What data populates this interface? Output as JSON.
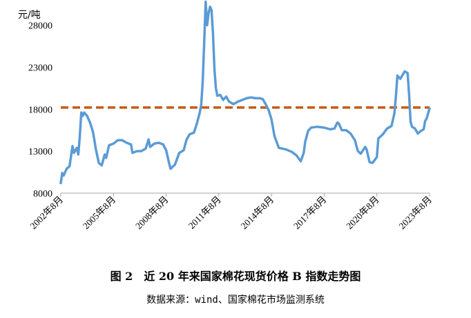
{
  "figure": {
    "title": "图 2　近 20 年来国家棉花现货价格 B 指数走势图",
    "source": "数据来源：wind、国家棉花市场监测系统"
  },
  "chart_data": {
    "type": "line",
    "y_unit_label": "元/吨",
    "ylim": [
      8000,
      31000
    ],
    "yticks": [
      8000,
      13000,
      18000,
      23000,
      28000
    ],
    "ytick_labels": [
      "8000",
      "13000",
      "18000",
      "23000",
      "28000"
    ],
    "xlim": [
      "2002-08",
      "2023-08"
    ],
    "xticks": [
      "2002-08",
      "2005-08",
      "2008-08",
      "2011-08",
      "2014-08",
      "2017-08",
      "2020-08",
      "2023-08"
    ],
    "xtick_labels": [
      "2002年8月",
      "2005年8月",
      "2008年8月",
      "2011年8月",
      "2014年8月",
      "2017年8月",
      "2020年8月",
      "2023年8月"
    ],
    "grid": false,
    "legend": "none",
    "series": [
      {
        "color": "#5b9bd5",
        "points": [
          [
            "2002-08",
            9200
          ],
          [
            "2002-09",
            10400
          ],
          [
            "2002-10",
            10100
          ],
          [
            "2002-12",
            10900
          ],
          [
            "2003-02",
            11200
          ],
          [
            "2003-04",
            13600
          ],
          [
            "2003-05",
            12800
          ],
          [
            "2003-07",
            13400
          ],
          [
            "2003-08",
            12600
          ],
          [
            "2003-09",
            14700
          ],
          [
            "2003-10",
            17600
          ],
          [
            "2003-11",
            17200
          ],
          [
            "2003-12",
            17600
          ],
          [
            "2004-02",
            17200
          ],
          [
            "2004-04",
            16400
          ],
          [
            "2004-06",
            15300
          ],
          [
            "2004-08",
            13200
          ],
          [
            "2004-10",
            11600
          ],
          [
            "2004-12",
            11300
          ],
          [
            "2005-02",
            12600
          ],
          [
            "2005-03",
            12200
          ],
          [
            "2005-05",
            13700
          ],
          [
            "2005-08",
            13900
          ],
          [
            "2005-11",
            14300
          ],
          [
            "2006-02",
            14300
          ],
          [
            "2006-05",
            14000
          ],
          [
            "2006-08",
            13800
          ],
          [
            "2006-09",
            12800
          ],
          [
            "2006-12",
            13000
          ],
          [
            "2007-03",
            13000
          ],
          [
            "2007-06",
            13300
          ],
          [
            "2007-08",
            14400
          ],
          [
            "2007-09",
            13500
          ],
          [
            "2007-12",
            13900
          ],
          [
            "2008-03",
            14000
          ],
          [
            "2008-06",
            13800
          ],
          [
            "2008-08",
            13100
          ],
          [
            "2008-10",
            11600
          ],
          [
            "2008-11",
            10900
          ],
          [
            "2009-02",
            11400
          ],
          [
            "2009-05",
            12800
          ],
          [
            "2009-08",
            13100
          ],
          [
            "2009-10",
            14400
          ],
          [
            "2009-12",
            15000
          ],
          [
            "2010-03",
            15200
          ],
          [
            "2010-05",
            16300
          ],
          [
            "2010-07",
            17600
          ],
          [
            "2010-08",
            18600
          ],
          [
            "2010-09",
            21200
          ],
          [
            "2010-10",
            26000
          ],
          [
            "2010-11",
            30800
          ],
          [
            "2010-12",
            28000
          ],
          [
            "2011-01",
            29400
          ],
          [
            "2011-02",
            30200
          ],
          [
            "2011-03",
            29800
          ],
          [
            "2011-04",
            27000
          ],
          [
            "2011-05",
            22800
          ],
          [
            "2011-06",
            20500
          ],
          [
            "2011-07",
            19600
          ],
          [
            "2011-09",
            19700
          ],
          [
            "2011-11",
            19100
          ],
          [
            "2012-01",
            19500
          ],
          [
            "2012-03",
            18900
          ],
          [
            "2012-06",
            18600
          ],
          [
            "2012-09",
            18900
          ],
          [
            "2012-12",
            19100
          ],
          [
            "2013-03",
            19300
          ],
          [
            "2013-06",
            19400
          ],
          [
            "2013-09",
            19300
          ],
          [
            "2013-12",
            19300
          ],
          [
            "2014-02",
            19200
          ],
          [
            "2014-04",
            18600
          ],
          [
            "2014-06",
            17900
          ],
          [
            "2014-08",
            16800
          ],
          [
            "2014-10",
            14800
          ],
          [
            "2015-01",
            13400
          ],
          [
            "2015-06",
            13200
          ],
          [
            "2015-10",
            12900
          ],
          [
            "2016-01",
            12500
          ],
          [
            "2016-04",
            11800
          ],
          [
            "2016-06",
            12800
          ],
          [
            "2016-07",
            14100
          ],
          [
            "2016-09",
            15400
          ],
          [
            "2016-11",
            15800
          ],
          [
            "2017-03",
            15900
          ],
          [
            "2017-08",
            15800
          ],
          [
            "2017-12",
            15600
          ],
          [
            "2018-03",
            15700
          ],
          [
            "2018-05",
            16400
          ],
          [
            "2018-06",
            16300
          ],
          [
            "2018-08",
            15500
          ],
          [
            "2018-11",
            15500
          ],
          [
            "2019-02",
            15100
          ],
          [
            "2019-05",
            14300
          ],
          [
            "2019-07",
            13000
          ],
          [
            "2019-09",
            12700
          ],
          [
            "2019-12",
            13500
          ],
          [
            "2020-01",
            13200
          ],
          [
            "2020-03",
            11700
          ],
          [
            "2020-05",
            11600
          ],
          [
            "2020-08",
            12300
          ],
          [
            "2020-09",
            14500
          ],
          [
            "2020-12",
            15000
          ],
          [
            "2021-03",
            15700
          ],
          [
            "2021-06",
            16000
          ],
          [
            "2021-08",
            17500
          ],
          [
            "2021-09",
            19600
          ],
          [
            "2021-10",
            22000
          ],
          [
            "2021-12",
            21600
          ],
          [
            "2022-03",
            22500
          ],
          [
            "2022-05",
            22300
          ],
          [
            "2022-06",
            19800
          ],
          [
            "2022-07",
            16500
          ],
          [
            "2022-08",
            15900
          ],
          [
            "2022-10",
            15700
          ],
          [
            "2022-12",
            15100
          ],
          [
            "2023-02",
            15400
          ],
          [
            "2023-04",
            15600
          ],
          [
            "2023-05",
            16600
          ],
          [
            "2023-06",
            16900
          ],
          [
            "2023-08",
            18100
          ]
        ]
      }
    ],
    "reference_line": {
      "value": 18200,
      "color": "#c55a11",
      "style": "dashed"
    }
  }
}
